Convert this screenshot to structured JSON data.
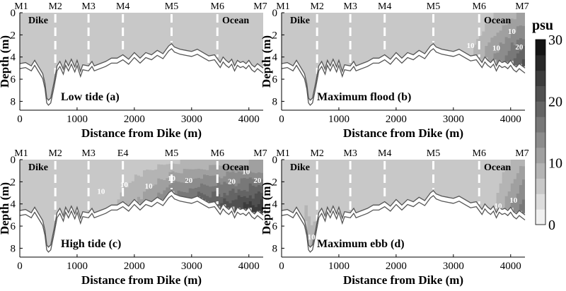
{
  "chart_data": [
    {
      "type": "heatmap",
      "panel_label": "Low tide (a)",
      "station_labels": [
        "M1",
        "M2",
        "M3",
        "M4",
        "M5",
        "M6",
        "M7"
      ],
      "station_x": [
        0,
        620,
        1200,
        1800,
        2650,
        3450,
        4200
      ],
      "xlabel": "Distance from Dike (m)",
      "ylabel": "Depth (m)",
      "xticks": [
        0,
        1000,
        2000,
        3000,
        4000
      ],
      "yticks": [
        0,
        2,
        4,
        6,
        8
      ],
      "xlim": [
        0,
        4250
      ],
      "ylim": [
        0,
        8.8
      ],
      "left_label": "Dike",
      "right_label": "Ocean",
      "contour_labels": [],
      "max_salinity": 4
    },
    {
      "type": "heatmap",
      "panel_label": "Maximum  flood (b)",
      "station_labels": [
        "M1",
        "M2",
        "M3",
        "M4",
        "M5",
        "M6",
        "M7"
      ],
      "station_x": [
        0,
        620,
        1200,
        1800,
        2650,
        3450,
        4200
      ],
      "xlabel": "Distance from Dike (m)",
      "ylabel": "Depth (m)",
      "xticks": [
        0,
        1000,
        2000,
        3000,
        4000
      ],
      "yticks": [
        0,
        2,
        4,
        6,
        8
      ],
      "xlim": [
        0,
        4250
      ],
      "ylim": [
        0,
        8.8
      ],
      "left_label": "Dike",
      "right_label": "Ocean",
      "contour_labels": [
        {
          "text": "10",
          "x": 3300,
          "depth": 3.2
        },
        {
          "text": "10",
          "x": 3750,
          "depth": 3.4
        },
        {
          "text": "10",
          "x": 4020,
          "depth": 1.9
        },
        {
          "text": "20",
          "x": 4150,
          "depth": 3.3
        }
      ],
      "max_salinity": 22
    },
    {
      "type": "heatmap",
      "panel_label": "High tide (c)",
      "station_labels": [
        "M1",
        "M2",
        "M3",
        "E4",
        "M5",
        "M6",
        "M7"
      ],
      "station_x": [
        0,
        620,
        1200,
        1800,
        2650,
        3450,
        4200
      ],
      "xlabel": "Distance from Dike (m)",
      "ylabel": "Depth (m)",
      "xticks": [
        0,
        1000,
        2000,
        3000,
        4000
      ],
      "yticks": [
        0,
        2,
        4,
        6,
        8
      ],
      "xlim": [
        0,
        4250
      ],
      "ylim": [
        0,
        8.8
      ],
      "left_label": "Dike",
      "right_label": "Ocean",
      "contour_labels": [
        {
          "text": "10",
          "x": 1420,
          "depth": 3.1
        },
        {
          "text": "10",
          "x": 1820,
          "depth": 2.5
        },
        {
          "text": "10",
          "x": 2250,
          "depth": 2.6
        },
        {
          "text": "10",
          "x": 2650,
          "depth": 1.9
        },
        {
          "text": "20",
          "x": 2950,
          "depth": 2.1
        },
        {
          "text": "20",
          "x": 3700,
          "depth": 2.2
        },
        {
          "text": "10",
          "x": 3950,
          "depth": 1.3
        },
        {
          "text": "20",
          "x": 4150,
          "depth": 2.1
        }
      ],
      "max_salinity": 26
    },
    {
      "type": "heatmap",
      "panel_label": "Maximum  ebb (d)",
      "station_labels": [
        "M1",
        "M2",
        "M3",
        "M4",
        "M5",
        "M6",
        "M7"
      ],
      "station_x": [
        0,
        620,
        1200,
        1800,
        2650,
        3450,
        4200
      ],
      "xlabel": "Distance from Dike (m)",
      "ylabel": "Depth (m)",
      "xticks": [
        0,
        1000,
        2000,
        3000,
        4000
      ],
      "yticks": [
        0,
        2,
        4,
        6,
        8
      ],
      "xlim": [
        0,
        4250
      ],
      "ylim": [
        0,
        8.8
      ],
      "left_label": "Dike",
      "right_label": "Ocean",
      "contour_labels": [
        {
          "text": "10",
          "x": 520,
          "depth": 7.2
        },
        {
          "text": "10",
          "x": 3780,
          "depth": 4.4
        },
        {
          "text": "10",
          "x": 4050,
          "depth": 3.9
        }
      ],
      "max_salinity": 18
    }
  ],
  "bottom_profile": {
    "x": [
      0,
      100,
      200,
      260,
      330,
      400,
      440,
      470,
      500,
      540,
      600,
      650,
      700,
      760,
      800,
      850,
      900,
      960,
      1000,
      1060,
      1100,
      1200,
      1260,
      1300,
      1400,
      1500,
      1600,
      1700,
      1800,
      1900,
      2000,
      2100,
      2200,
      2300,
      2400,
      2500,
      2600,
      2650,
      2700,
      2800,
      2900,
      3000,
      3100,
      3200,
      3300,
      3400,
      3500,
      3550,
      3600,
      3650,
      3700,
      3750,
      3800,
      3850,
      3900,
      3950,
      4000,
      4050,
      4100,
      4150,
      4200,
      4250
    ],
    "depth": [
      4.6,
      4.5,
      4.8,
      4.3,
      4.9,
      5.5,
      6.4,
      7.7,
      7.9,
      7.7,
      6.2,
      4.8,
      4.4,
      5.1,
      4.3,
      4.8,
      4.2,
      4.9,
      4.3,
      5.3,
      4.7,
      4.8,
      4.4,
      4.8,
      4.6,
      4.4,
      4.1,
      4.1,
      3.8,
      4.2,
      3.6,
      4.1,
      3.6,
      3.8,
      3.4,
      3.7,
      3.0,
      2.8,
      3.1,
      3.3,
      3.4,
      3.5,
      3.3,
      3.6,
      3.9,
      3.8,
      4.5,
      4.0,
      4.3,
      4.5,
      4.2,
      4.8,
      4.3,
      4.5,
      4.4,
      4.6,
      4.3,
      4.7,
      4.9,
      4.6,
      4.8,
      5.0
    ]
  },
  "colorbar": {
    "title": "psu",
    "min": 0,
    "max": 30,
    "ticks": [
      0,
      10,
      20,
      30
    ],
    "levels": [
      "#f0f0f0",
      "#dcdcdc",
      "#c8c8c8",
      "#b4b4b4",
      "#a0a0a0",
      "#8c8c8c",
      "#787878",
      "#646464",
      "#505050",
      "#3c3c3c",
      "#282828",
      "#141414"
    ]
  }
}
